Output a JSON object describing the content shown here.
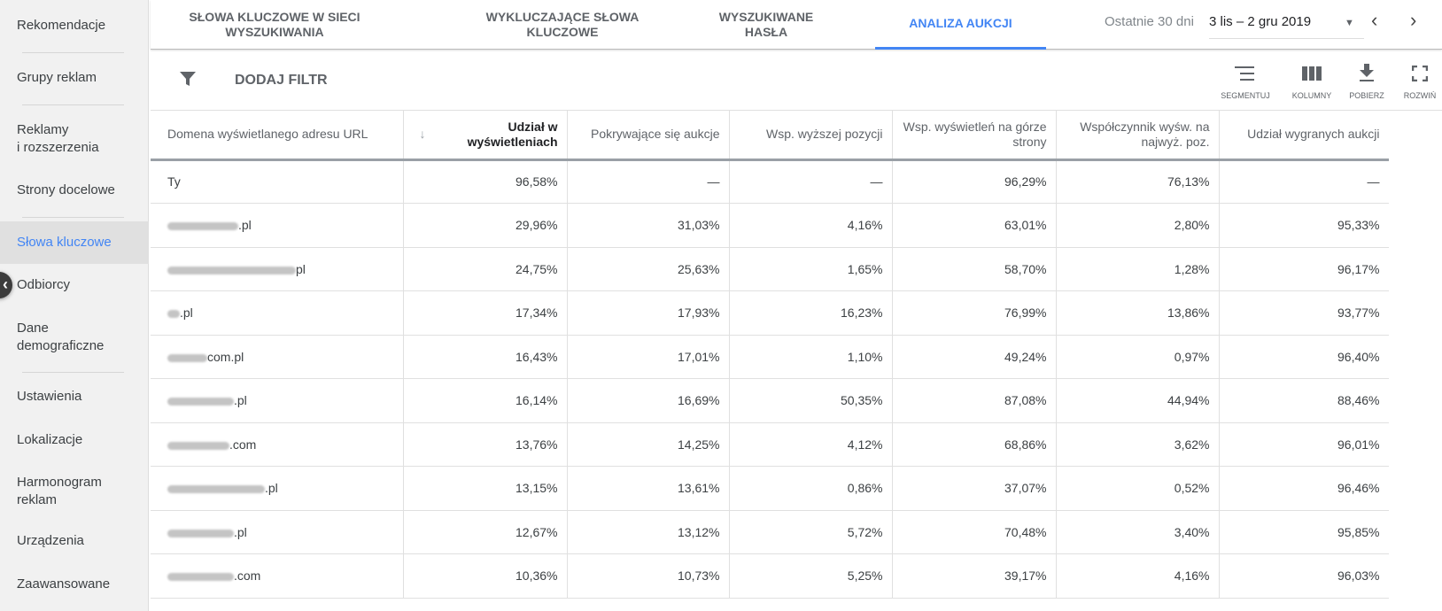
{
  "sidebar": {
    "items": [
      "Rekomendacje",
      "Grupy reklam",
      "Reklamy\ni rozszerzenia",
      "Strony docelowe",
      "Słowa kluczowe",
      "Odbiorcy",
      "Dane\ndemograficzne",
      "Ustawienia",
      "Lokalizacje",
      "Harmonogram\nreklam",
      "Urządzenia",
      "Zaawansowane"
    ],
    "active": "Słowa kluczowe"
  },
  "tabs": [
    "SŁOWA KLUCZOWE W SIECI WYSZUKIWANIA",
    "WYKLUCZAJĄCE SŁOWA KLUCZOWE",
    "WYSZUKIWANE HASŁA",
    "ANALIZA AUKCJI"
  ],
  "date": {
    "label": "Ostatnie 30 dni",
    "value": "3 lis – 2 gru 2019"
  },
  "filter": {
    "label": "DODAJ FILTR"
  },
  "tools": [
    "SEGMENTUJ",
    "KOLUMNY",
    "POBIERZ",
    "ROZWIŃ"
  ],
  "colors": {
    "accent": "#4285f4"
  },
  "table": {
    "headers": [
      "Domena wyświetlanego adresu URL",
      "Udział w wyświetleniach",
      "Pokrywające się aukcje",
      "Wsp. wyższej pozycji",
      "Wsp. wyświetleń na górze strony",
      "Współczynnik wyśw. na najwyż. poz.",
      "Udział wygranych aukcji"
    ],
    "rows": [
      {
        "domain": "Ty",
        "vals": [
          "96,58%",
          "—",
          "—",
          "96,29%",
          "76,13%",
          "—"
        ]
      },
      {
        "domain": ".pl",
        "vals": [
          "29,96%",
          "31,03%",
          "4,16%",
          "63,01%",
          "2,80%",
          "95,33%"
        ]
      },
      {
        "domain": "pl",
        "vals": [
          "24,75%",
          "25,63%",
          "1,65%",
          "58,70%",
          "1,28%",
          "96,17%"
        ]
      },
      {
        "domain": ".pl",
        "vals": [
          "17,34%",
          "17,93%",
          "16,23%",
          "76,99%",
          "13,86%",
          "93,77%"
        ]
      },
      {
        "domain": "com.pl",
        "vals": [
          "16,43%",
          "17,01%",
          "1,10%",
          "49,24%",
          "0,97%",
          "96,40%"
        ]
      },
      {
        "domain": ".pl",
        "vals": [
          "16,14%",
          "16,69%",
          "50,35%",
          "87,08%",
          "44,94%",
          "88,46%"
        ]
      },
      {
        "domain": ".com",
        "vals": [
          "13,76%",
          "14,25%",
          "4,12%",
          "68,86%",
          "3,62%",
          "96,01%"
        ]
      },
      {
        "domain": ".pl",
        "vals": [
          "13,15%",
          "13,61%",
          "0,86%",
          "37,07%",
          "0,52%",
          "96,46%"
        ]
      },
      {
        "domain": ".pl",
        "vals": [
          "12,67%",
          "13,12%",
          "5,72%",
          "70,48%",
          "3,40%",
          "95,85%"
        ]
      },
      {
        "domain": ".com",
        "vals": [
          "10,36%",
          "10,73%",
          "5,25%",
          "39,17%",
          "4,16%",
          "96,03%"
        ]
      }
    ]
  }
}
